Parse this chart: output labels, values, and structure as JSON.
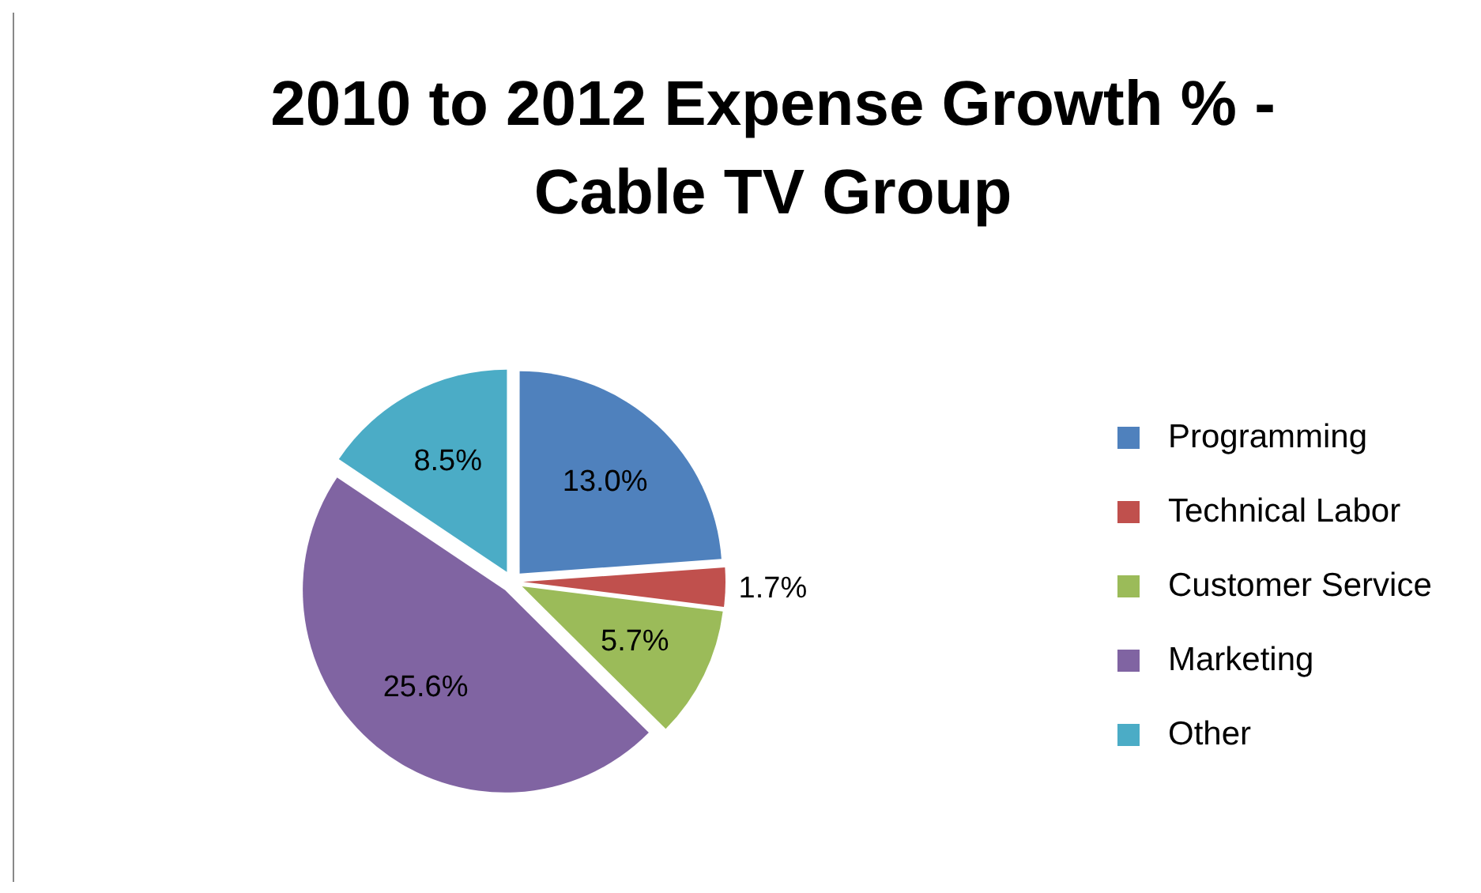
{
  "chart_data": {
    "type": "pie",
    "title": "2010 to 2012 Expense Growth % - Cable TV Group",
    "categories": [
      "Programming",
      "Technical Labor",
      "Customer Service",
      "Marketing",
      "Other"
    ],
    "values": [
      13.0,
      1.7,
      5.7,
      25.6,
      8.5
    ],
    "value_labels": [
      "13.0%",
      "1.7%",
      "5.7%",
      "25.6%",
      "8.5%"
    ],
    "colors": [
      "#4f81bd",
      "#c0504d",
      "#9bbb59",
      "#8064a2",
      "#4bacc6"
    ],
    "legend": "right"
  }
}
